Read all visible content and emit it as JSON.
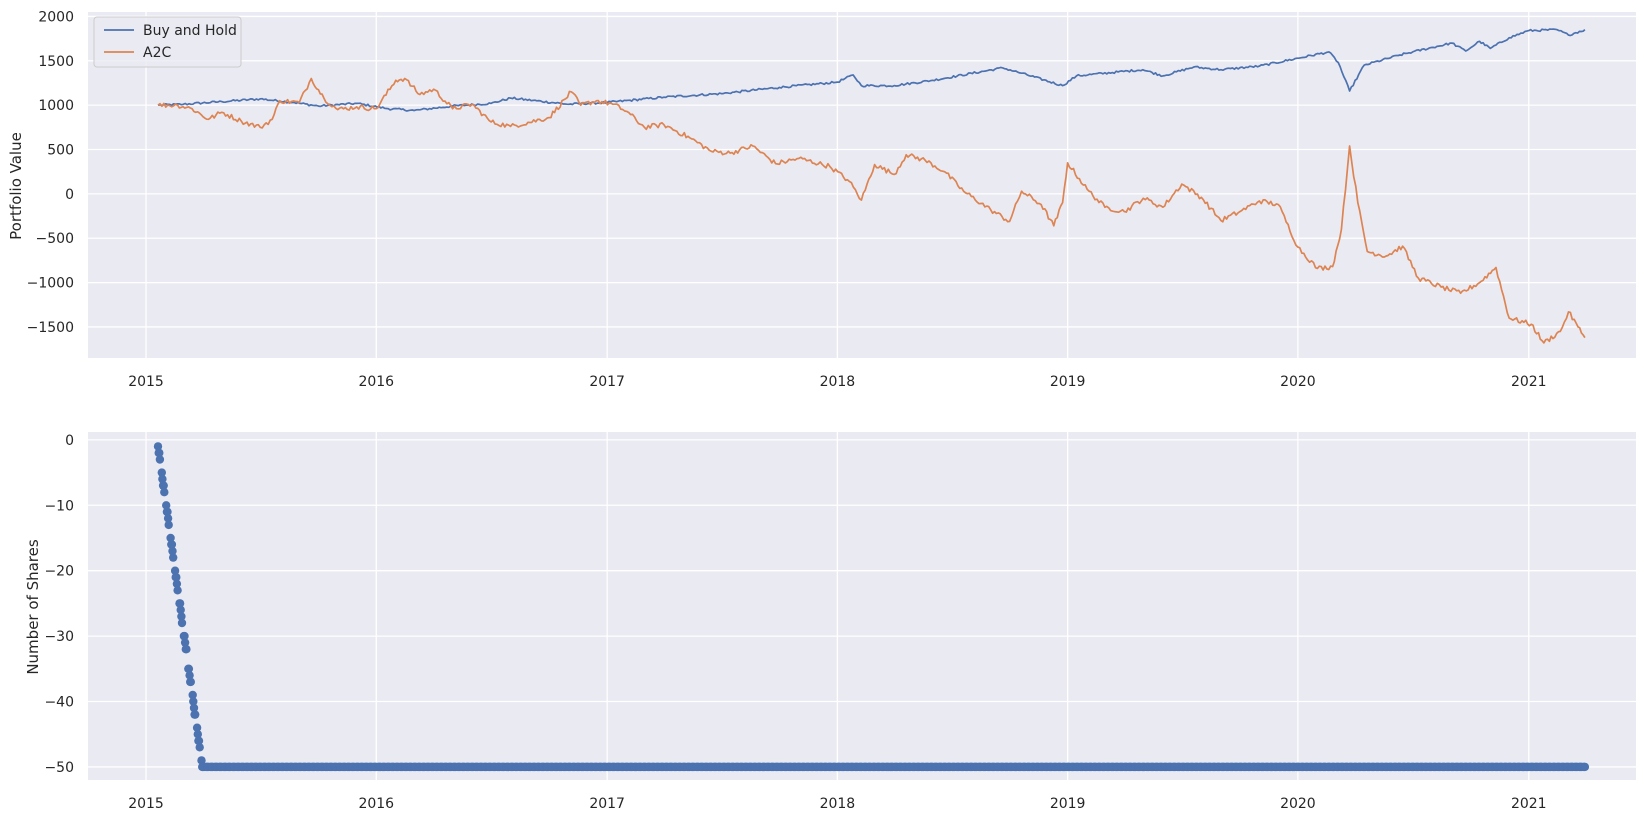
{
  "chart_data": [
    {
      "type": "line",
      "xlabel": "",
      "ylabel": "Portfolio Value",
      "xlim": [
        "2014-10-01",
        "2021-06-20"
      ],
      "ylim": [
        -1850,
        2050
      ],
      "x_ticks": [
        "2015",
        "2016",
        "2017",
        "2018",
        "2019",
        "2020",
        "2021"
      ],
      "y_ticks": [
        2000,
        1500,
        1000,
        500,
        0,
        -500,
        -1000,
        -1500
      ],
      "grid": true,
      "legend_position": "upper-left",
      "series": [
        {
          "name": "Buy and Hold",
          "color": "#4c72b0",
          "points": [
            [
              "2015-01-20",
              1000
            ],
            [
              "2015-03-01",
              1010
            ],
            [
              "2015-05-01",
              1040
            ],
            [
              "2015-07-01",
              1070
            ],
            [
              "2015-08-24",
              1030
            ],
            [
              "2015-10-01",
              990
            ],
            [
              "2015-12-01",
              1020
            ],
            [
              "2016-01-20",
              960
            ],
            [
              "2016-03-01",
              940
            ],
            [
              "2016-05-01",
              990
            ],
            [
              "2016-07-01",
              1020
            ],
            [
              "2016-08-01",
              1080
            ],
            [
              "2016-11-01",
              1010
            ],
            [
              "2017-01-01",
              1030
            ],
            [
              "2017-04-01",
              1090
            ],
            [
              "2017-07-01",
              1130
            ],
            [
              "2017-10-01",
              1200
            ],
            [
              "2018-01-01",
              1260
            ],
            [
              "2018-01-26",
              1340
            ],
            [
              "2018-02-08",
              1220
            ],
            [
              "2018-04-01",
              1220
            ],
            [
              "2018-06-01",
              1280
            ],
            [
              "2018-09-20",
              1420
            ],
            [
              "2018-10-20",
              1360
            ],
            [
              "2018-12-24",
              1220
            ],
            [
              "2019-01-15",
              1330
            ],
            [
              "2019-04-30",
              1400
            ],
            [
              "2019-06-01",
              1330
            ],
            [
              "2019-07-20",
              1430
            ],
            [
              "2019-09-01",
              1400
            ],
            [
              "2019-11-01",
              1440
            ],
            [
              "2020-02-19",
              1600
            ],
            [
              "2020-03-05",
              1480
            ],
            [
              "2020-03-23",
              1160
            ],
            [
              "2020-04-15",
              1450
            ],
            [
              "2020-06-08",
              1560
            ],
            [
              "2020-07-01",
              1600
            ],
            [
              "2020-09-01",
              1700
            ],
            [
              "2020-09-23",
              1610
            ],
            [
              "2020-10-15",
              1720
            ],
            [
              "2020-11-01",
              1640
            ],
            [
              "2020-12-01",
              1760
            ],
            [
              "2021-01-01",
              1840
            ],
            [
              "2021-02-15",
              1850
            ],
            [
              "2021-03-05",
              1790
            ],
            [
              "2021-03-31",
              1850
            ]
          ]
        },
        {
          "name": "A2C",
          "color": "#dd8452",
          "points": [
            [
              "2015-01-20",
              1000
            ],
            [
              "2015-02-20",
              1000
            ],
            [
              "2015-03-15",
              960
            ],
            [
              "2015-04-10",
              840
            ],
            [
              "2015-05-01",
              920
            ],
            [
              "2015-06-01",
              820
            ],
            [
              "2015-07-01",
              750
            ],
            [
              "2015-07-20",
              840
            ],
            [
              "2015-08-01",
              1050
            ],
            [
              "2015-09-01",
              1030
            ],
            [
              "2015-09-20",
              1300
            ],
            [
              "2015-10-10",
              1080
            ],
            [
              "2015-11-01",
              950
            ],
            [
              "2015-12-01",
              980
            ],
            [
              "2016-01-01",
              960
            ],
            [
              "2016-02-01",
              1280
            ],
            [
              "2016-02-15",
              1300
            ],
            [
              "2016-03-10",
              1120
            ],
            [
              "2016-04-01",
              1180
            ],
            [
              "2016-05-01",
              960
            ],
            [
              "2016-06-01",
              1010
            ],
            [
              "2016-07-01",
              810
            ],
            [
              "2016-08-01",
              760
            ],
            [
              "2016-10-01",
              860
            ],
            [
              "2016-11-05",
              1150
            ],
            [
              "2016-11-20",
              1000
            ],
            [
              "2016-12-15",
              1050
            ],
            [
              "2017-01-10",
              1010
            ],
            [
              "2017-02-01",
              930
            ],
            [
              "2017-03-01",
              750
            ],
            [
              "2017-04-01",
              780
            ],
            [
              "2017-05-15",
              620
            ],
            [
              "2017-06-15",
              480
            ],
            [
              "2017-07-15",
              460
            ],
            [
              "2017-08-20",
              540
            ],
            [
              "2017-09-25",
              340
            ],
            [
              "2017-11-01",
              400
            ],
            [
              "2017-12-20",
              310
            ],
            [
              "2018-01-20",
              140
            ],
            [
              "2018-02-08",
              -70
            ],
            [
              "2018-03-01",
              330
            ],
            [
              "2018-04-01",
              220
            ],
            [
              "2018-04-20",
              440
            ],
            [
              "2018-05-20",
              380
            ],
            [
              "2018-06-20",
              250
            ],
            [
              "2018-07-20",
              30
            ],
            [
              "2018-09-01",
              -180
            ],
            [
              "2018-10-01",
              -310
            ],
            [
              "2018-10-20",
              30
            ],
            [
              "2018-11-20",
              -120
            ],
            [
              "2018-12-10",
              -360
            ],
            [
              "2018-12-24",
              -100
            ],
            [
              "2019-01-01",
              350
            ],
            [
              "2019-02-01",
              50
            ],
            [
              "2019-03-01",
              -150
            ],
            [
              "2019-04-01",
              -200
            ],
            [
              "2019-05-01",
              -50
            ],
            [
              "2019-06-01",
              -150
            ],
            [
              "2019-07-01",
              110
            ],
            [
              "2019-08-01",
              -40
            ],
            [
              "2019-09-01",
              -300
            ],
            [
              "2019-10-01",
              -200
            ],
            [
              "2019-11-01",
              -80
            ],
            [
              "2019-12-01",
              -120
            ],
            [
              "2020-01-01",
              -600
            ],
            [
              "2020-02-01",
              -840
            ],
            [
              "2020-02-25",
              -820
            ],
            [
              "2020-03-10",
              -400
            ],
            [
              "2020-03-23",
              540
            ],
            [
              "2020-04-05",
              -100
            ],
            [
              "2020-04-20",
              -650
            ],
            [
              "2020-05-20",
              -700
            ],
            [
              "2020-06-15",
              -590
            ],
            [
              "2020-07-10",
              -950
            ],
            [
              "2020-08-15",
              -1050
            ],
            [
              "2020-09-15",
              -1120
            ],
            [
              "2020-10-15",
              -1000
            ],
            [
              "2020-11-10",
              -830
            ],
            [
              "2020-12-01",
              -1400
            ],
            [
              "2021-01-05",
              -1470
            ],
            [
              "2021-01-25",
              -1680
            ],
            [
              "2021-02-20",
              -1550
            ],
            [
              "2021-03-05",
              -1330
            ],
            [
              "2021-03-20",
              -1500
            ],
            [
              "2021-03-31",
              -1620
            ]
          ]
        }
      ]
    },
    {
      "type": "scatter",
      "xlabel": "",
      "ylabel": "Number of Shares",
      "xlim": [
        "2014-10-01",
        "2021-06-20"
      ],
      "ylim": [
        -52,
        1.2
      ],
      "x_ticks": [
        "2015",
        "2016",
        "2017",
        "2018",
        "2019",
        "2020",
        "2021"
      ],
      "y_ticks": [
        0,
        -10,
        -20,
        -30,
        -40,
        -50
      ],
      "grid": true,
      "series": [
        {
          "color": "#4c72b0",
          "marker": "circle",
          "description_of_values": "shares decrease by 1 per trading day from -1 on 2015-01-20 down to -50 around 2015-03-31, then remain at -50 until 2021-03-31",
          "start_date": "2015-01-20",
          "start_value": -1,
          "floor_date": "2015-03-31",
          "floor_value": -50,
          "end_date": "2021-03-31",
          "end_value": -50
        }
      ]
    }
  ]
}
